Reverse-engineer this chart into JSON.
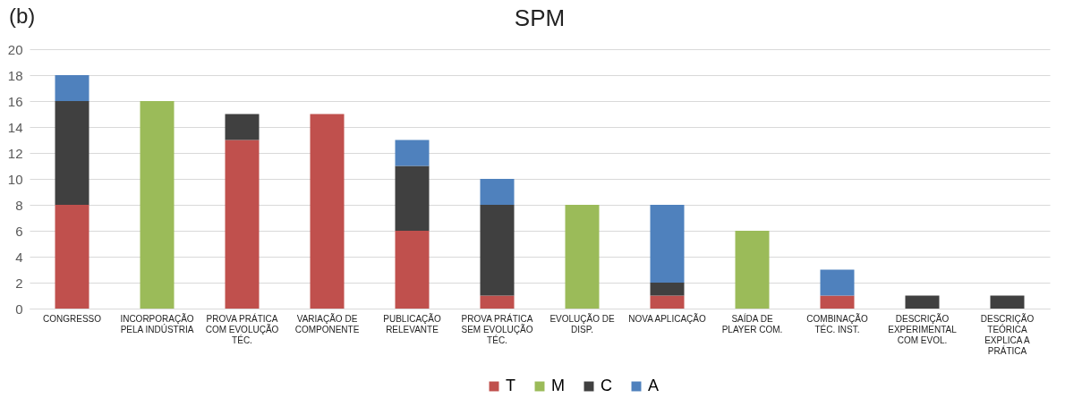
{
  "chart_data": {
    "type": "bar",
    "title": "SPM",
    "annotations": [
      "(b)"
    ],
    "categories": [
      "CONGRESSO",
      "INCORPORAÇÃO PELA INDÚSTRIA",
      "PROVA PRÁTICA COM EVOLUÇÃO TÉC.",
      "VARIAÇÃO DE COMPONENTE",
      "PUBLICAÇÃO RELEVANTE",
      "PROVA PRÁTICA SEM EVOLUÇÃO TÉC.",
      "EVOLUÇÃO DE DISP.",
      "NOVA APLICAÇÃO",
      "SAÍDA DE PLAYER COM.",
      "COMBINAÇÃO TÉC. INST.",
      "DESCRIÇÃO EXPERIMENTAL COM EVOL.",
      "DESCRIÇÃO TEÓRICA EXPLICA A PRÁTICA"
    ],
    "series": [
      {
        "name": "T",
        "color": "#c0504d",
        "values": [
          8,
          null,
          13,
          15,
          6,
          1,
          null,
          1,
          null,
          1,
          null,
          null
        ]
      },
      {
        "name": "M",
        "color": "#9bbb59",
        "values": [
          null,
          16,
          null,
          null,
          null,
          null,
          8,
          null,
          6,
          null,
          null,
          null
        ]
      },
      {
        "name": "C",
        "color": "#404040",
        "values": [
          8,
          null,
          2,
          null,
          5,
          7,
          null,
          1,
          null,
          null,
          1,
          1
        ]
      },
      {
        "name": "A",
        "color": "#4f81bd",
        "values": [
          2,
          null,
          null,
          null,
          2,
          2,
          null,
          6,
          null,
          2,
          null,
          null
        ]
      }
    ],
    "stacked": true,
    "ylim": [
      0,
      20
    ],
    "yticks": [
      0,
      2,
      4,
      6,
      8,
      10,
      12,
      14,
      16,
      18,
      20
    ],
    "grid": "y",
    "legend": "bottom"
  }
}
